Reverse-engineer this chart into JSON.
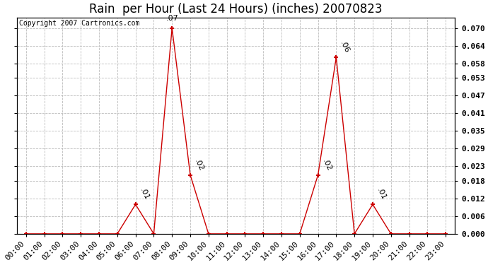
{
  "title": "Rain  per Hour (Last 24 Hours) (inches) 20070823",
  "copyright": "Copyright 2007 Cartronics.com",
  "hours": [
    0,
    1,
    2,
    3,
    4,
    5,
    6,
    7,
    8,
    9,
    10,
    11,
    12,
    13,
    14,
    15,
    16,
    17,
    18,
    19,
    20,
    21,
    22,
    23
  ],
  "values": [
    0.0,
    0.0,
    0.0,
    0.0,
    0.0,
    0.0,
    0.01,
    0.0,
    0.07,
    0.02,
    0.0,
    0.0,
    0.0,
    0.0,
    0.0,
    0.0,
    0.02,
    0.06,
    0.0,
    0.01,
    0.0,
    0.0,
    0.0,
    0.0
  ],
  "line_color": "#cc0000",
  "marker_color": "#cc0000",
  "bg_color": "#ffffff",
  "grid_color": "#bbbbbb",
  "yticks": [
    0.0,
    0.006,
    0.012,
    0.018,
    0.023,
    0.029,
    0.035,
    0.041,
    0.047,
    0.053,
    0.058,
    0.064,
    0.07
  ],
  "ymax": 0.0735,
  "title_fontsize": 12,
  "label_fontsize": 8,
  "annot_fontsize": 8,
  "copyright_fontsize": 7
}
